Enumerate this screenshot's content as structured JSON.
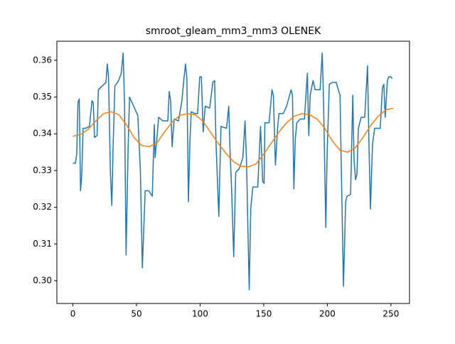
{
  "chart_data": {
    "type": "line",
    "title": "smroot_gleam_mm3_mm3 OLENEK",
    "xlim": [
      -12.6,
      264.6
    ],
    "xticks": [
      0,
      50,
      100,
      150,
      200,
      250
    ],
    "ylim": [
      0.2938,
      0.3652
    ],
    "yticks": [
      {
        "value": 0.3,
        "label": "0.30"
      },
      0.31,
      0.32,
      0.33,
      0.34,
      0.35,
      0.36
    ],
    "series": [
      {
        "color": "#1f77b4",
        "x": [
          0,
          2,
          3,
          4,
          5,
          6,
          7,
          8,
          10,
          13,
          15,
          16,
          17,
          19,
          20,
          23,
          26,
          27,
          28,
          29.5,
          30.6,
          31.7,
          33,
          36,
          38,
          39.5,
          40.6,
          41.8,
          43.4,
          44.5,
          48.4,
          51,
          53,
          54.6,
          56.8,
          59.6,
          62.4,
          64,
          64.6,
          65.7,
          67.4,
          70.7,
          74.6,
          75.7,
          76.8,
          78,
          79.6,
          83,
          85.7,
          87,
          88.5,
          89.6,
          90.8,
          92,
          93,
          96,
          98,
          99.7,
          101,
          102.4,
          104,
          107.5,
          110,
          111.4,
          112.5,
          114.7,
          116.4,
          120.8,
          122.5,
          123.6,
          124.7,
          126.4,
          128,
          130.8,
          133.6,
          135.3,
          136.4,
          138.6,
          139.8,
          141.4,
          145.3,
          147.5,
          149.2,
          150.3,
          150.9,
          154.2,
          156.5,
          157.6,
          159.2,
          160.9,
          162,
          165.4,
          168,
          171.5,
          172.6,
          173.7,
          174.8,
          176,
          178.7,
          182,
          184.3,
          185.4,
          186.5,
          188.8,
          190.4,
          194.3,
          196,
          197,
          198.8,
          199.9,
          201.6,
          204.3,
          207,
          208.2,
          210,
          211,
          212.7,
          214.4,
          215.5,
          218.3,
          220,
          221,
          222.2,
          223.3,
          224.4,
          226.6,
          229.4,
          231.6,
          232.7,
          233.9,
          235.5,
          237.2,
          241.6,
          243.3,
          244.4,
          245.5,
          247.2,
          248.3,
          250,
          251
        ],
        "values": [
          0.332,
          0.332,
          0.3345,
          0.3485,
          0.3495,
          0.3245,
          0.329,
          0.3415,
          0.3415,
          0.342,
          0.349,
          0.3485,
          0.339,
          0.3395,
          0.352,
          0.353,
          0.354,
          0.359,
          0.3555,
          0.329,
          0.3205,
          0.338,
          0.353,
          0.3545,
          0.3565,
          0.362,
          0.348,
          0.307,
          0.336,
          0.35,
          0.347,
          0.345,
          0.3305,
          0.3035,
          0.3245,
          0.3245,
          0.323,
          0.3425,
          0.3335,
          0.3375,
          0.3445,
          0.3435,
          0.3435,
          0.3515,
          0.349,
          0.3365,
          0.344,
          0.3435,
          0.349,
          0.354,
          0.359,
          0.355,
          0.3215,
          0.338,
          0.346,
          0.3455,
          0.3455,
          0.3555,
          0.3555,
          0.3405,
          0.3475,
          0.347,
          0.354,
          0.3545,
          0.3375,
          0.3175,
          0.342,
          0.3415,
          0.3475,
          0.3345,
          0.3255,
          0.3065,
          0.3295,
          0.3305,
          0.3335,
          0.3435,
          0.3335,
          0.2975,
          0.3195,
          0.3255,
          0.3255,
          0.342,
          0.327,
          0.3265,
          0.343,
          0.343,
          0.352,
          0.3505,
          0.3315,
          0.3415,
          0.3455,
          0.3455,
          0.3475,
          0.352,
          0.3505,
          0.325,
          0.3385,
          0.343,
          0.344,
          0.344,
          0.3565,
          0.3395,
          0.3505,
          0.3545,
          0.352,
          0.352,
          0.362,
          0.3495,
          0.3145,
          0.3355,
          0.3535,
          0.354,
          0.354,
          0.3525,
          0.3505,
          0.3305,
          0.2985,
          0.3215,
          0.323,
          0.3235,
          0.3505,
          0.333,
          0.3275,
          0.329,
          0.3415,
          0.3445,
          0.3445,
          0.3585,
          0.3375,
          0.3195,
          0.337,
          0.3415,
          0.3415,
          0.3525,
          0.3535,
          0.3445,
          0.3545,
          0.3555,
          0.3555,
          0.355
        ]
      },
      {
        "color": "#ff7f0e",
        "x": [
          0,
          6,
          12,
          18,
          24,
          30,
          36,
          42,
          48,
          54,
          60,
          66,
          72,
          78,
          84,
          90,
          96,
          102,
          108,
          114,
          120,
          126,
          132,
          138,
          144,
          150,
          156,
          162,
          168,
          174,
          180,
          186,
          192,
          198,
          204,
          210,
          216,
          222,
          228,
          234,
          240,
          246,
          252
        ],
        "values": [
          0.3393,
          0.3398,
          0.3412,
          0.3435,
          0.3455,
          0.346,
          0.3452,
          0.3425,
          0.339,
          0.3368,
          0.3365,
          0.3375,
          0.3405,
          0.3432,
          0.345,
          0.3455,
          0.3452,
          0.3435,
          0.3405,
          0.3375,
          0.3348,
          0.3325,
          0.3312,
          0.331,
          0.3318,
          0.3345,
          0.3375,
          0.3405,
          0.343,
          0.3448,
          0.3455,
          0.3452,
          0.344,
          0.3415,
          0.338,
          0.3355,
          0.335,
          0.3362,
          0.339,
          0.3422,
          0.3448,
          0.3465,
          0.347
        ]
      }
    ]
  }
}
